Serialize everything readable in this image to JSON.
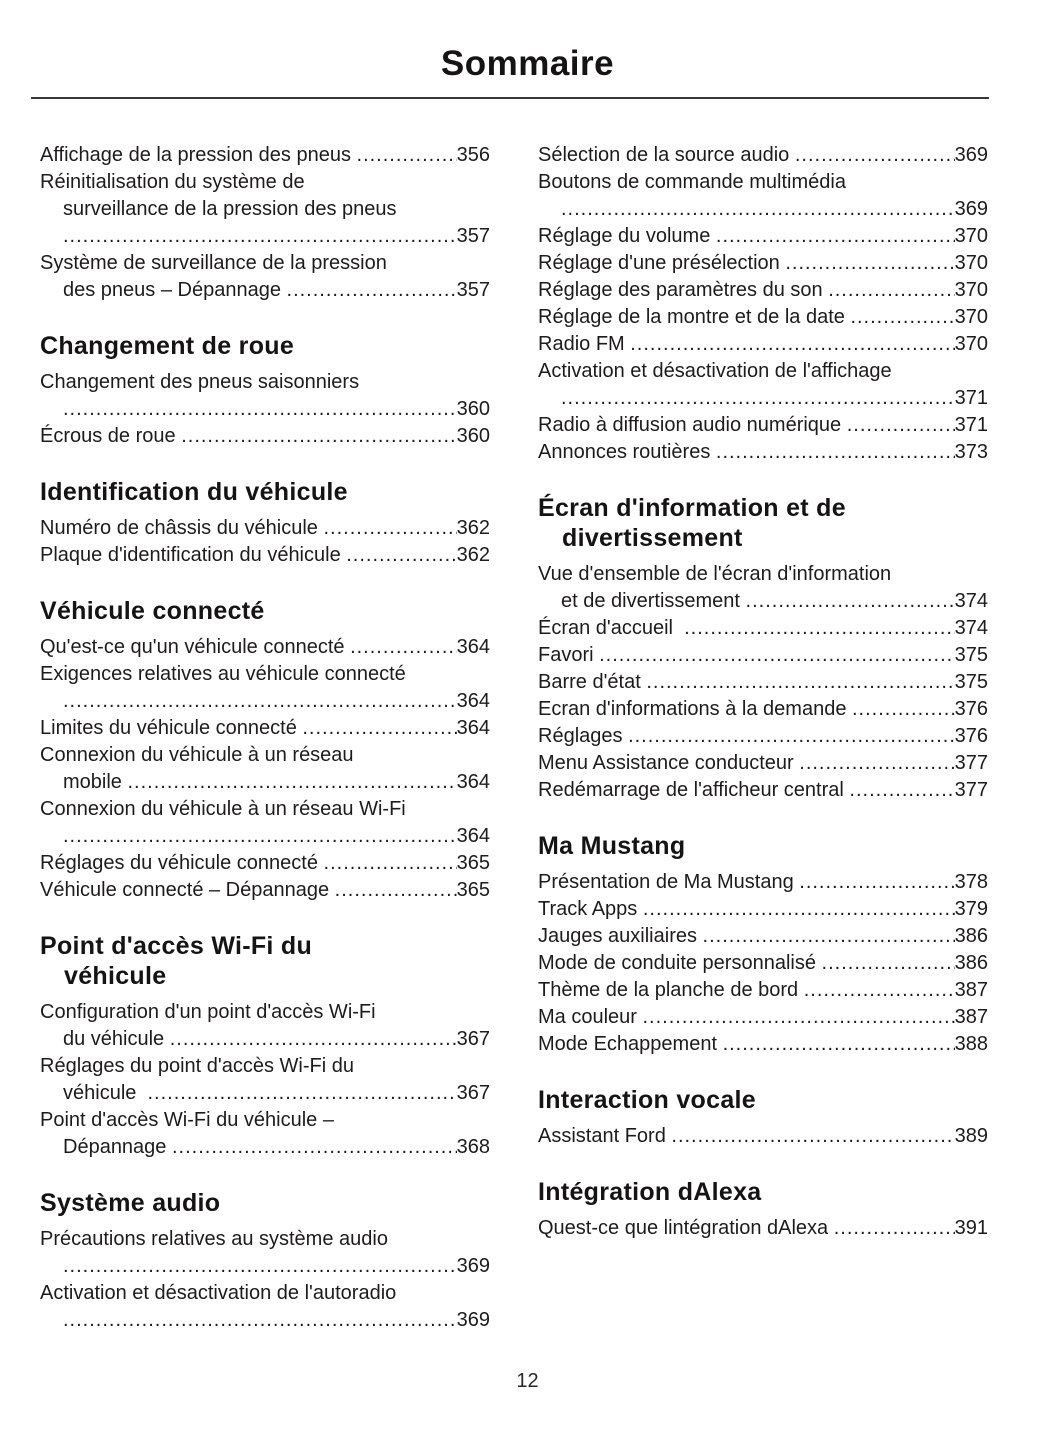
{
  "title": "Sommaire",
  "page_number": "12",
  "columns": [
    {
      "groups": [
        {
          "heading_lines": [],
          "entries": [
            {
              "lines": [
                "Affichage de la pression des pneus "
              ],
              "page": "356"
            },
            {
              "lines": [
                "Réinitialisation du système de",
                "surveillance de la pression des pneus",
                ""
              ],
              "page": "357"
            },
            {
              "lines": [
                "Système de surveillance de la pression",
                "des pneus – Dépannage "
              ],
              "page": "357"
            }
          ]
        },
        {
          "heading_lines": [
            "Changement de roue"
          ],
          "entries": [
            {
              "lines": [
                "Changement des pneus saisonniers",
                ""
              ],
              "page": "360"
            },
            {
              "lines": [
                "Écrous de roue "
              ],
              "page": "360"
            }
          ]
        },
        {
          "heading_lines": [
            "Identification du véhicule"
          ],
          "entries": [
            {
              "lines": [
                "Numéro de châssis du véhicule "
              ],
              "page": "362"
            },
            {
              "lines": [
                "Plaque d'identification du véhicule "
              ],
              "page": "362"
            }
          ]
        },
        {
          "heading_lines": [
            "Véhicule connecté"
          ],
          "entries": [
            {
              "lines": [
                "Qu'est-ce qu'un véhicule connecté "
              ],
              "page": "364"
            },
            {
              "lines": [
                "Exigences relatives au véhicule connecté",
                ""
              ],
              "page": "364"
            },
            {
              "lines": [
                "Limites du véhicule connecté "
              ],
              "page": "364"
            },
            {
              "lines": [
                "Connexion du véhicule à un réseau",
                "mobile "
              ],
              "page": "364"
            },
            {
              "lines": [
                "Connexion du véhicule à un réseau Wi-Fi",
                ""
              ],
              "page": "364"
            },
            {
              "lines": [
                "Réglages du véhicule connecté "
              ],
              "page": "365"
            },
            {
              "lines": [
                "Véhicule connecté – Dépannage "
              ],
              "page": "365"
            }
          ]
        },
        {
          "heading_lines": [
            "Point d'accès Wi-Fi du",
            "véhicule"
          ],
          "entries": [
            {
              "lines": [
                "Configuration d'un point d'accès Wi-Fi",
                "du véhicule "
              ],
              "page": "367"
            },
            {
              "lines": [
                "Réglages du point d'accès Wi-Fi du",
                "véhicule  "
              ],
              "page": "367"
            },
            {
              "lines": [
                "Point d'accès Wi-Fi du véhicule –",
                "Dépannage "
              ],
              "page": "368"
            }
          ]
        },
        {
          "heading_lines": [
            "Système audio"
          ],
          "entries": [
            {
              "lines": [
                "Précautions relatives au système audio",
                ""
              ],
              "page": "369"
            },
            {
              "lines": [
                "Activation et désactivation de l'autoradio",
                ""
              ],
              "page": "369"
            }
          ]
        }
      ]
    },
    {
      "groups": [
        {
          "heading_lines": [],
          "entries": [
            {
              "lines": [
                "Sélection de la source audio "
              ],
              "page": "369"
            },
            {
              "lines": [
                "Boutons de commande multimédia",
                ""
              ],
              "page": "369"
            },
            {
              "lines": [
                "Réglage du volume "
              ],
              "page": "370"
            },
            {
              "lines": [
                "Réglage d'une présélection "
              ],
              "page": "370"
            },
            {
              "lines": [
                "Réglage des paramètres du son "
              ],
              "page": "370"
            },
            {
              "lines": [
                "Réglage de la montre et de la date "
              ],
              "page": "370"
            },
            {
              "lines": [
                "Radio FM "
              ],
              "page": "370"
            },
            {
              "lines": [
                "Activation et désactivation de l'affichage",
                ""
              ],
              "page": "371"
            },
            {
              "lines": [
                "Radio à diffusion audio numérique "
              ],
              "page": "371"
            },
            {
              "lines": [
                "Annonces routières "
              ],
              "page": "373"
            }
          ]
        },
        {
          "heading_lines": [
            "Écran d'information et de",
            "divertissement"
          ],
          "entries": [
            {
              "lines": [
                "Vue d'ensemble de l'écran d'information",
                "et de divertissement "
              ],
              "page": "374"
            },
            {
              "lines": [
                "Écran d'accueil  "
              ],
              "page": "374"
            },
            {
              "lines": [
                "Favori "
              ],
              "page": "375"
            },
            {
              "lines": [
                "Barre d'état "
              ],
              "page": "375"
            },
            {
              "lines": [
                "Ecran d'informations à la demande "
              ],
              "page": "376"
            },
            {
              "lines": [
                "Réglages "
              ],
              "page": "376"
            },
            {
              "lines": [
                "Menu Assistance conducteur "
              ],
              "page": "377"
            },
            {
              "lines": [
                "Redémarrage de l'afficheur central "
              ],
              "page": "377"
            }
          ]
        },
        {
          "heading_lines": [
            "Ma Mustang"
          ],
          "entries": [
            {
              "lines": [
                "Présentation de Ma Mustang "
              ],
              "page": "378"
            },
            {
              "lines": [
                "Track Apps "
              ],
              "page": "379"
            },
            {
              "lines": [
                "Jauges auxiliaires "
              ],
              "page": "386"
            },
            {
              "lines": [
                "Mode de conduite personnalisé "
              ],
              "page": "386"
            },
            {
              "lines": [
                "Thème de la planche de bord "
              ],
              "page": "387"
            },
            {
              "lines": [
                "Ma couleur "
              ],
              "page": "387"
            },
            {
              "lines": [
                "Mode Echappement "
              ],
              "page": "388"
            }
          ]
        },
        {
          "heading_lines": [
            "Interaction vocale"
          ],
          "entries": [
            {
              "lines": [
                "Assistant Ford "
              ],
              "page": "389"
            }
          ]
        },
        {
          "heading_lines": [
            "Intégration dAlexa"
          ],
          "entries": [
            {
              "lines": [
                "Quest-ce que lintégration dAlexa "
              ],
              "page": "391"
            }
          ]
        }
      ]
    }
  ]
}
